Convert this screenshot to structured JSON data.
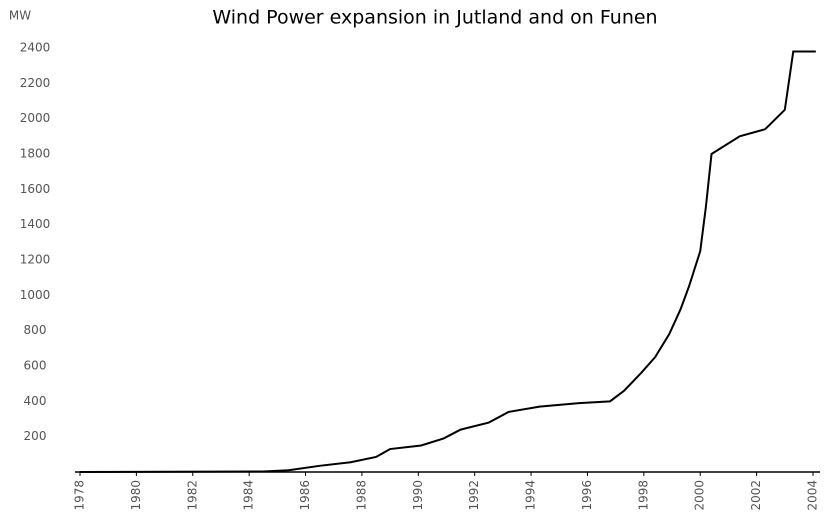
{
  "chart_data": {
    "type": "line",
    "title": "Wind Power expansion in Jutland and on Funen",
    "y_label": "MW",
    "x": [
      1978,
      1984.5,
      1985.4,
      1986.5,
      1987.6,
      1988.5,
      1989,
      1990.1,
      1990.9,
      1991.5,
      1992.5,
      1993.2,
      1994.3,
      1995.7,
      1996.8,
      1997.3,
      1997.9,
      1998.4,
      1998.9,
      1999.3,
      1999.6,
      2000,
      2000.2,
      2000.4,
      2001.4,
      2002.3,
      2003,
      2003.3,
      2004.1
    ],
    "series": [
      {
        "name": "MW",
        "color": "#000000",
        "values": [
          0,
          3,
          10,
          35,
          55,
          85,
          130,
          150,
          190,
          240,
          280,
          340,
          370,
          390,
          400,
          460,
          560,
          650,
          780,
          920,
          1050,
          1250,
          1500,
          1800,
          1900,
          1940,
          2050,
          2380,
          2380
        ]
      }
    ],
    "xlim": [
      1978,
      2004
    ],
    "xticks": [
      1978,
      1980,
      1982,
      1984,
      1986,
      1988,
      1990,
      1992,
      1994,
      1996,
      1998,
      2000,
      2002,
      2004
    ],
    "ylim": [
      0,
      2400
    ],
    "yticks": [
      200,
      400,
      600,
      800,
      1000,
      1200,
      1400,
      1600,
      1800,
      2000,
      2200,
      2400
    ],
    "grid": false
  }
}
